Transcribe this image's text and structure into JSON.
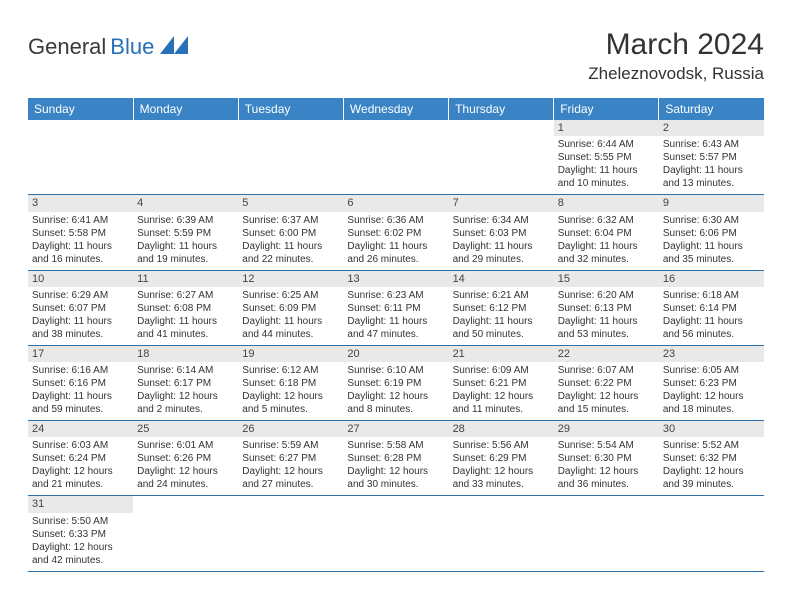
{
  "colors": {
    "header_bg": "#3a84c5",
    "row_divider": "#2f6fa8",
    "daynum_bg": "#e9e9e9",
    "logo_blue": "#2671b8"
  },
  "logo": {
    "text1": "General",
    "text2": "Blue"
  },
  "title": "March 2024",
  "location": "Zheleznovodsk, Russia",
  "weekdays": [
    "Sunday",
    "Monday",
    "Tuesday",
    "Wednesday",
    "Thursday",
    "Friday",
    "Saturday"
  ],
  "weeks": [
    [
      {
        "empty": true
      },
      {
        "empty": true
      },
      {
        "empty": true
      },
      {
        "empty": true
      },
      {
        "empty": true
      },
      {
        "n": "1",
        "sr": "Sunrise: 6:44 AM",
        "ss": "Sunset: 5:55 PM",
        "d1": "Daylight: 11 hours",
        "d2": "and 10 minutes."
      },
      {
        "n": "2",
        "sr": "Sunrise: 6:43 AM",
        "ss": "Sunset: 5:57 PM",
        "d1": "Daylight: 11 hours",
        "d2": "and 13 minutes."
      }
    ],
    [
      {
        "n": "3",
        "sr": "Sunrise: 6:41 AM",
        "ss": "Sunset: 5:58 PM",
        "d1": "Daylight: 11 hours",
        "d2": "and 16 minutes."
      },
      {
        "n": "4",
        "sr": "Sunrise: 6:39 AM",
        "ss": "Sunset: 5:59 PM",
        "d1": "Daylight: 11 hours",
        "d2": "and 19 minutes."
      },
      {
        "n": "5",
        "sr": "Sunrise: 6:37 AM",
        "ss": "Sunset: 6:00 PM",
        "d1": "Daylight: 11 hours",
        "d2": "and 22 minutes."
      },
      {
        "n": "6",
        "sr": "Sunrise: 6:36 AM",
        "ss": "Sunset: 6:02 PM",
        "d1": "Daylight: 11 hours",
        "d2": "and 26 minutes."
      },
      {
        "n": "7",
        "sr": "Sunrise: 6:34 AM",
        "ss": "Sunset: 6:03 PM",
        "d1": "Daylight: 11 hours",
        "d2": "and 29 minutes."
      },
      {
        "n": "8",
        "sr": "Sunrise: 6:32 AM",
        "ss": "Sunset: 6:04 PM",
        "d1": "Daylight: 11 hours",
        "d2": "and 32 minutes."
      },
      {
        "n": "9",
        "sr": "Sunrise: 6:30 AM",
        "ss": "Sunset: 6:06 PM",
        "d1": "Daylight: 11 hours",
        "d2": "and 35 minutes."
      }
    ],
    [
      {
        "n": "10",
        "sr": "Sunrise: 6:29 AM",
        "ss": "Sunset: 6:07 PM",
        "d1": "Daylight: 11 hours",
        "d2": "and 38 minutes."
      },
      {
        "n": "11",
        "sr": "Sunrise: 6:27 AM",
        "ss": "Sunset: 6:08 PM",
        "d1": "Daylight: 11 hours",
        "d2": "and 41 minutes."
      },
      {
        "n": "12",
        "sr": "Sunrise: 6:25 AM",
        "ss": "Sunset: 6:09 PM",
        "d1": "Daylight: 11 hours",
        "d2": "and 44 minutes."
      },
      {
        "n": "13",
        "sr": "Sunrise: 6:23 AM",
        "ss": "Sunset: 6:11 PM",
        "d1": "Daylight: 11 hours",
        "d2": "and 47 minutes."
      },
      {
        "n": "14",
        "sr": "Sunrise: 6:21 AM",
        "ss": "Sunset: 6:12 PM",
        "d1": "Daylight: 11 hours",
        "d2": "and 50 minutes."
      },
      {
        "n": "15",
        "sr": "Sunrise: 6:20 AM",
        "ss": "Sunset: 6:13 PM",
        "d1": "Daylight: 11 hours",
        "d2": "and 53 minutes."
      },
      {
        "n": "16",
        "sr": "Sunrise: 6:18 AM",
        "ss": "Sunset: 6:14 PM",
        "d1": "Daylight: 11 hours",
        "d2": "and 56 minutes."
      }
    ],
    [
      {
        "n": "17",
        "sr": "Sunrise: 6:16 AM",
        "ss": "Sunset: 6:16 PM",
        "d1": "Daylight: 11 hours",
        "d2": "and 59 minutes."
      },
      {
        "n": "18",
        "sr": "Sunrise: 6:14 AM",
        "ss": "Sunset: 6:17 PM",
        "d1": "Daylight: 12 hours",
        "d2": "and 2 minutes."
      },
      {
        "n": "19",
        "sr": "Sunrise: 6:12 AM",
        "ss": "Sunset: 6:18 PM",
        "d1": "Daylight: 12 hours",
        "d2": "and 5 minutes."
      },
      {
        "n": "20",
        "sr": "Sunrise: 6:10 AM",
        "ss": "Sunset: 6:19 PM",
        "d1": "Daylight: 12 hours",
        "d2": "and 8 minutes."
      },
      {
        "n": "21",
        "sr": "Sunrise: 6:09 AM",
        "ss": "Sunset: 6:21 PM",
        "d1": "Daylight: 12 hours",
        "d2": "and 11 minutes."
      },
      {
        "n": "22",
        "sr": "Sunrise: 6:07 AM",
        "ss": "Sunset: 6:22 PM",
        "d1": "Daylight: 12 hours",
        "d2": "and 15 minutes."
      },
      {
        "n": "23",
        "sr": "Sunrise: 6:05 AM",
        "ss": "Sunset: 6:23 PM",
        "d1": "Daylight: 12 hours",
        "d2": "and 18 minutes."
      }
    ],
    [
      {
        "n": "24",
        "sr": "Sunrise: 6:03 AM",
        "ss": "Sunset: 6:24 PM",
        "d1": "Daylight: 12 hours",
        "d2": "and 21 minutes."
      },
      {
        "n": "25",
        "sr": "Sunrise: 6:01 AM",
        "ss": "Sunset: 6:26 PM",
        "d1": "Daylight: 12 hours",
        "d2": "and 24 minutes."
      },
      {
        "n": "26",
        "sr": "Sunrise: 5:59 AM",
        "ss": "Sunset: 6:27 PM",
        "d1": "Daylight: 12 hours",
        "d2": "and 27 minutes."
      },
      {
        "n": "27",
        "sr": "Sunrise: 5:58 AM",
        "ss": "Sunset: 6:28 PM",
        "d1": "Daylight: 12 hours",
        "d2": "and 30 minutes."
      },
      {
        "n": "28",
        "sr": "Sunrise: 5:56 AM",
        "ss": "Sunset: 6:29 PM",
        "d1": "Daylight: 12 hours",
        "d2": "and 33 minutes."
      },
      {
        "n": "29",
        "sr": "Sunrise: 5:54 AM",
        "ss": "Sunset: 6:30 PM",
        "d1": "Daylight: 12 hours",
        "d2": "and 36 minutes."
      },
      {
        "n": "30",
        "sr": "Sunrise: 5:52 AM",
        "ss": "Sunset: 6:32 PM",
        "d1": "Daylight: 12 hours",
        "d2": "and 39 minutes."
      }
    ],
    [
      {
        "n": "31",
        "sr": "Sunrise: 5:50 AM",
        "ss": "Sunset: 6:33 PM",
        "d1": "Daylight: 12 hours",
        "d2": "and 42 minutes."
      },
      {
        "empty": true
      },
      {
        "empty": true
      },
      {
        "empty": true
      },
      {
        "empty": true
      },
      {
        "empty": true
      },
      {
        "empty": true
      }
    ]
  ]
}
